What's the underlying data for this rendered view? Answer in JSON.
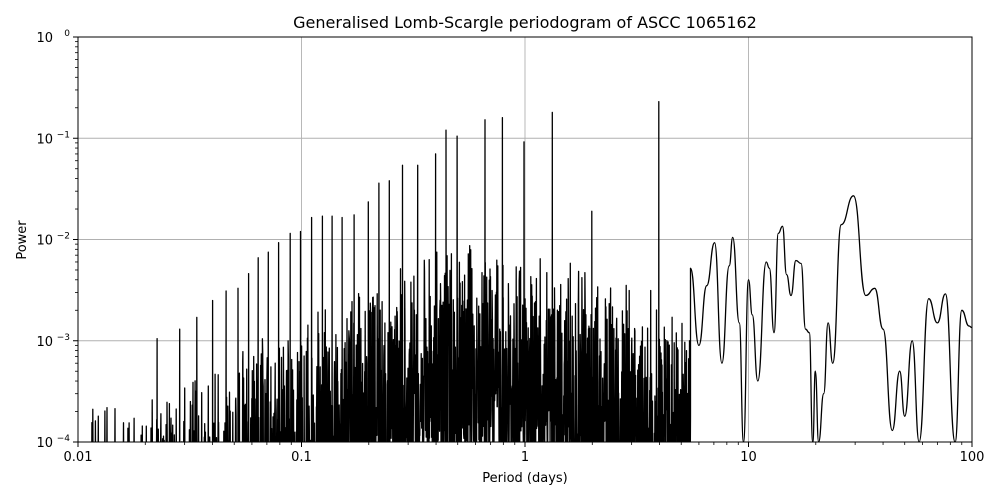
{
  "chart_data": {
    "type": "line",
    "title": "Generalised Lomb-Scargle periodogram of ASCC 1065162",
    "xlabel": "Period (days)",
    "ylabel": "Power",
    "xscale": "log",
    "yscale": "log",
    "xlim": [
      0.01,
      100
    ],
    "ylim": [
      0.0001,
      1
    ],
    "grid": true,
    "legend": null,
    "line_color": "#000000",
    "grid_color": "#b0b0b0",
    "x_ticks": [
      {
        "value": 0.01,
        "label": "0.01"
      },
      {
        "value": 0.1,
        "label": "0.1"
      },
      {
        "value": 1,
        "label": "1"
      },
      {
        "value": 10,
        "label": "10"
      },
      {
        "value": 100,
        "label": "100"
      }
    ],
    "y_ticks": [
      {
        "value": 1,
        "base": "10",
        "exp": "0"
      },
      {
        "value": 0.1,
        "base": "10",
        "exp": "−1"
      },
      {
        "value": 0.01,
        "base": "10",
        "exp": "−2"
      },
      {
        "value": 0.001,
        "base": "10",
        "exp": "−3"
      },
      {
        "value": 0.0001,
        "base": "10",
        "exp": "−4"
      }
    ],
    "major_peaks": [
      {
        "period": 0.0226,
        "power": 0.00105
      },
      {
        "period": 0.0285,
        "power": 0.0013
      },
      {
        "period": 0.034,
        "power": 0.0017
      },
      {
        "period": 0.04,
        "power": 0.0025
      },
      {
        "period": 0.046,
        "power": 0.0031
      },
      {
        "period": 0.052,
        "power": 0.0033
      },
      {
        "period": 0.058,
        "power": 0.0046
      },
      {
        "period": 0.064,
        "power": 0.0066
      },
      {
        "period": 0.071,
        "power": 0.0075
      },
      {
        "period": 0.079,
        "power": 0.0093
      },
      {
        "period": 0.089,
        "power": 0.0115
      },
      {
        "period": 0.099,
        "power": 0.012
      },
      {
        "period": 0.111,
        "power": 0.0165
      },
      {
        "period": 0.124,
        "power": 0.017
      },
      {
        "period": 0.137,
        "power": 0.017
      },
      {
        "period": 0.152,
        "power": 0.0165
      },
      {
        "period": 0.172,
        "power": 0.0175
      },
      {
        "period": 0.199,
        "power": 0.0235
      },
      {
        "period": 0.222,
        "power": 0.036
      },
      {
        "period": 0.247,
        "power": 0.038
      },
      {
        "period": 0.283,
        "power": 0.054
      },
      {
        "period": 0.331,
        "power": 0.054
      },
      {
        "period": 0.398,
        "power": 0.07
      },
      {
        "period": 0.443,
        "power": 0.12
      },
      {
        "period": 0.497,
        "power": 0.105
      },
      {
        "period": 0.662,
        "power": 0.152
      },
      {
        "period": 0.792,
        "power": 0.16
      },
      {
        "period": 0.99,
        "power": 0.092
      },
      {
        "period": 1.325,
        "power": 0.18
      },
      {
        "period": 1.99,
        "power": 0.019
      },
      {
        "period": 3.97,
        "power": 0.23
      },
      {
        "period": 7.05,
        "power": 0.0093
      },
      {
        "period": 8.5,
        "power": 0.0105
      },
      {
        "period": 14.2,
        "power": 0.0135
      },
      {
        "period": 29.5,
        "power": 0.027
      }
    ],
    "smooth_tail": [
      {
        "period": 5.5,
        "power": 0.0052
      },
      {
        "period": 6.0,
        "power": 0.0009
      },
      {
        "period": 6.5,
        "power": 0.0035
      },
      {
        "period": 7.05,
        "power": 0.0093
      },
      {
        "period": 7.6,
        "power": 0.0006
      },
      {
        "period": 8.2,
        "power": 0.0055
      },
      {
        "period": 8.5,
        "power": 0.0105
      },
      {
        "period": 9.1,
        "power": 0.0015
      },
      {
        "period": 9.5,
        "power": 0.0001
      },
      {
        "period": 10.0,
        "power": 0.004
      },
      {
        "period": 10.4,
        "power": 0.0018
      },
      {
        "period": 11.0,
        "power": 0.0004
      },
      {
        "period": 12.0,
        "power": 0.006
      },
      {
        "period": 12.4,
        "power": 0.0052
      },
      {
        "period": 13.0,
        "power": 0.0012
      },
      {
        "period": 13.6,
        "power": 0.0115
      },
      {
        "period": 14.2,
        "power": 0.0135
      },
      {
        "period": 14.8,
        "power": 0.0045
      },
      {
        "period": 15.5,
        "power": 0.0028
      },
      {
        "period": 16.3,
        "power": 0.0062
      },
      {
        "period": 17.2,
        "power": 0.0058
      },
      {
        "period": 18.0,
        "power": 0.0013
      },
      {
        "period": 18.7,
        "power": 0.0012
      },
      {
        "period": 19.4,
        "power": 0.0001
      },
      {
        "period": 19.9,
        "power": 0.0005
      },
      {
        "period": 20.6,
        "power": 0.0001
      },
      {
        "period": 21.7,
        "power": 0.0003
      },
      {
        "period": 22.7,
        "power": 0.0015
      },
      {
        "period": 23.8,
        "power": 0.0006
      },
      {
        "period": 26.0,
        "power": 0.014
      },
      {
        "period": 29.5,
        "power": 0.027
      },
      {
        "period": 33.5,
        "power": 0.0028
      },
      {
        "period": 36.7,
        "power": 0.0033
      },
      {
        "period": 40.0,
        "power": 0.0013
      },
      {
        "period": 44.0,
        "power": 0.00013
      },
      {
        "period": 47.5,
        "power": 0.0005
      },
      {
        "period": 50.0,
        "power": 0.00018
      },
      {
        "period": 54.0,
        "power": 0.001
      },
      {
        "period": 58.0,
        "power": 0.0001
      },
      {
        "period": 64.0,
        "power": 0.0026
      },
      {
        "period": 70.0,
        "power": 0.0015
      },
      {
        "period": 76.0,
        "power": 0.0029
      },
      {
        "period": 84.0,
        "power": 0.0001
      },
      {
        "period": 90.0,
        "power": 0.002
      },
      {
        "period": 97.0,
        "power": 0.0014
      },
      {
        "period": 100.0,
        "power": 0.00135
      }
    ]
  }
}
